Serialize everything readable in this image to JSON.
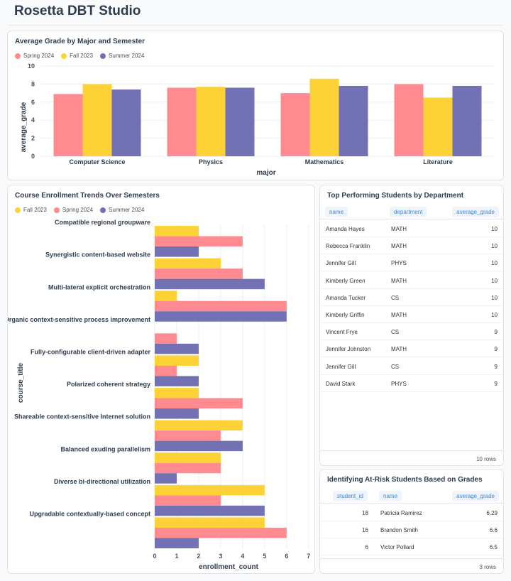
{
  "app": {
    "title": "Rosetta DBT Studio"
  },
  "colors": {
    "spring": "#ff8a8f",
    "fall": "#fdd237",
    "summer": "#7171b3"
  },
  "chart_data": [
    {
      "type": "bar",
      "title": "Average Grade by Major and Semester",
      "xlabel": "major",
      "ylabel": "average_grade",
      "ylim": [
        0,
        10
      ],
      "yticks": [
        0,
        2,
        4,
        6,
        8,
        10
      ],
      "categories": [
        "Computer Science",
        "Physics",
        "Mathematics",
        "Literature"
      ],
      "series": [
        {
          "name": "Spring 2024",
          "color": "#ff8a8f",
          "values": [
            6.9,
            7.6,
            7.0,
            8.0
          ]
        },
        {
          "name": "Fall 2023",
          "color": "#fdd237",
          "values": [
            8.0,
            7.7,
            8.6,
            6.5
          ]
        },
        {
          "name": "Summer 2024",
          "color": "#7171b3",
          "values": [
            7.4,
            7.6,
            7.8,
            7.8
          ]
        }
      ]
    },
    {
      "type": "bar",
      "orientation": "horizontal",
      "title": "Course Enrollment Trends Over Semesters",
      "xlabel": "enrollment_count",
      "ylabel": "course_title",
      "xlim": [
        0,
        7.2
      ],
      "xticks": [
        0,
        1,
        2,
        3,
        4,
        5,
        6,
        7
      ],
      "categories": [
        "Compatible regional groupware",
        "Synergistic content-based website",
        "Multi-lateral explicit orchestration",
        "Organic context-sensitive process improvement",
        "Fully-configurable client-driven adapter",
        "Polarized coherent strategy",
        "Shareable context-sensitive Internet solution",
        "Balanced exuding parallelism",
        "Diverse bi-directional utilization",
        "Upgradable contextually-based concept"
      ],
      "series": [
        {
          "name": "Fall 2023",
          "color": "#fdd237",
          "values": [
            2,
            3,
            1,
            0,
            2,
            2,
            4,
            3,
            5,
            5
          ]
        },
        {
          "name": "Spring 2024",
          "color": "#ff8a8f",
          "values": [
            4,
            4,
            6,
            1,
            1,
            4,
            3,
            3,
            3,
            6
          ]
        },
        {
          "name": "Summer 2024",
          "color": "#7171b3",
          "values": [
            2,
            5,
            6,
            2,
            2,
            2,
            4,
            1,
            5,
            2
          ]
        }
      ]
    }
  ],
  "top_students": {
    "title": "Top Performing Students by Department",
    "columns": [
      "name",
      "department",
      "average_grade"
    ],
    "rows": [
      [
        "Amanda Hayes",
        "MATH",
        "10"
      ],
      [
        "Rebecca Franklin",
        "MATH",
        "10"
      ],
      [
        "Jennifer Gill",
        "PHYS",
        "10"
      ],
      [
        "Kimberly Green",
        "MATH",
        "10"
      ],
      [
        "Amanda Tucker",
        "CS",
        "10"
      ],
      [
        "Kimberly Griffin",
        "MATH",
        "10"
      ],
      [
        "Vincent Frye",
        "CS",
        "9"
      ],
      [
        "Jennifer Johnston",
        "MATH",
        "9"
      ],
      [
        "Jennifer Gill",
        "CS",
        "9"
      ],
      [
        "David Stark",
        "PHYS",
        "9"
      ]
    ],
    "row_count": "10 rows"
  },
  "at_risk": {
    "title": "Identifying At-Risk Students Based on Grades",
    "columns": [
      "student_id",
      "name",
      "average_grade"
    ],
    "rows": [
      [
        "18",
        "Patricia Ramirez",
        "6.29"
      ],
      [
        "16",
        "Brandon Smith",
        "6.6"
      ],
      [
        "6",
        "Victor Pollard",
        "6.5"
      ]
    ],
    "row_count": "3 rows"
  }
}
